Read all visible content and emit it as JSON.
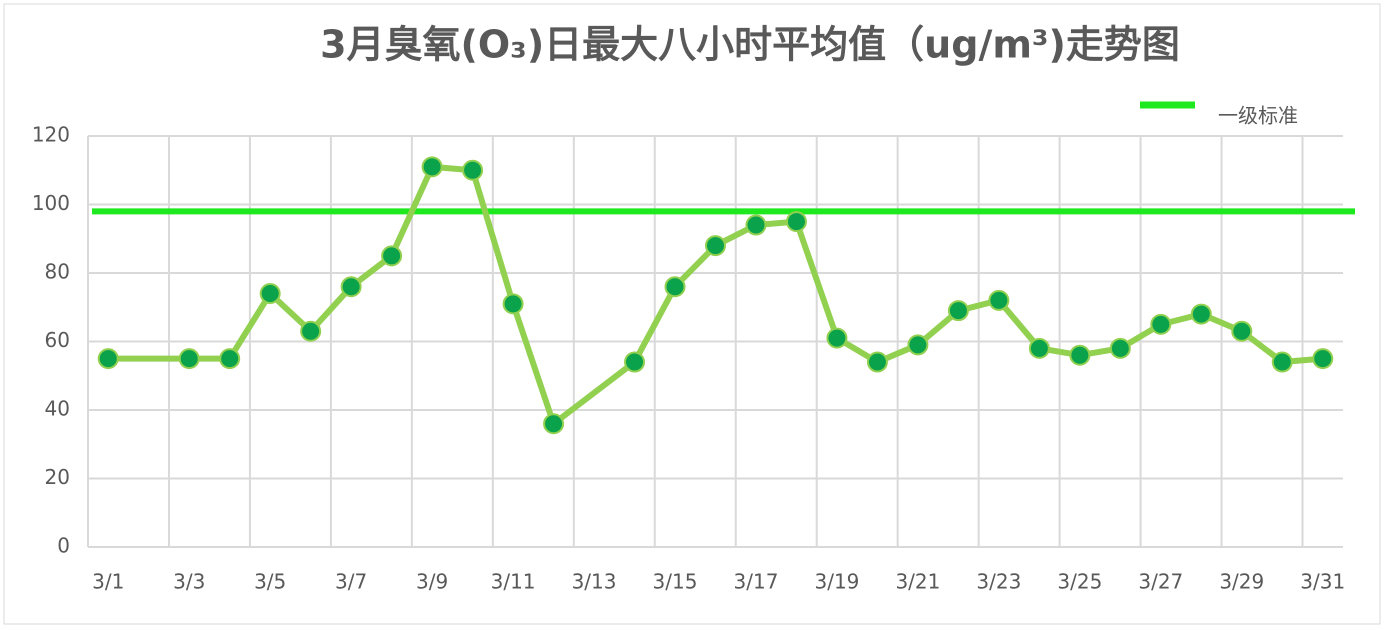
{
  "chart_data": {
    "type": "line",
    "title": "3月臭氧(O₃)日最大八小时平均值（ug/m³)走势图",
    "categories": [
      "3/1",
      null,
      "3/3",
      null,
      "3/5",
      null,
      "3/7",
      null,
      "3/9",
      null,
      "3/11",
      null,
      "3/13",
      null,
      "3/15",
      null,
      "3/17",
      null,
      "3/19",
      null,
      "3/21",
      null,
      "3/23",
      null,
      "3/25",
      null,
      "3/27",
      null,
      "3/29",
      null,
      "3/31"
    ],
    "series": [
      {
        "color": "#92d050",
        "marker_color": "#0aa24a",
        "values": [
          55,
          null,
          55,
          55,
          74,
          63,
          76,
          85,
          111,
          110,
          71,
          36,
          null,
          54,
          76,
          88,
          94,
          95,
          61,
          54,
          59,
          69,
          72,
          58,
          56,
          58,
          65,
          68,
          63,
          54,
          55
        ]
      }
    ],
    "reference_line": {
      "name": "一级标准",
      "value": 98,
      "color": "#1ee81e"
    },
    "connect_gaps": true,
    "ylim": [
      0,
      120
    ],
    "yticks": [
      0,
      20,
      40,
      60,
      80,
      100,
      120
    ],
    "grid": true
  }
}
